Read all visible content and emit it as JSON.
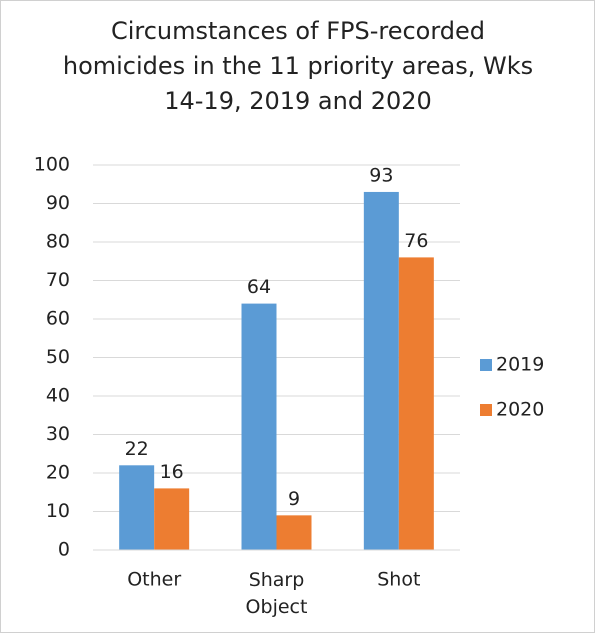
{
  "chart_data": {
    "type": "bar",
    "title": "Circumstances of FPS-recorded homicides in the 11 priority areas, Wks 14-19, 2019 and 2020",
    "categories": [
      "Other",
      "Sharp Object",
      "Shot"
    ],
    "series": [
      {
        "name": "2019",
        "color": "#5b9bd5",
        "values": [
          22,
          64,
          93
        ]
      },
      {
        "name": "2020",
        "color": "#ed7d31",
        "values": [
          16,
          9,
          76
        ]
      }
    ],
    "ylim": [
      0,
      100
    ],
    "yticks": [
      0,
      10,
      20,
      30,
      40,
      50,
      60,
      70,
      80,
      90,
      100
    ],
    "grid": true,
    "legend": "right"
  }
}
